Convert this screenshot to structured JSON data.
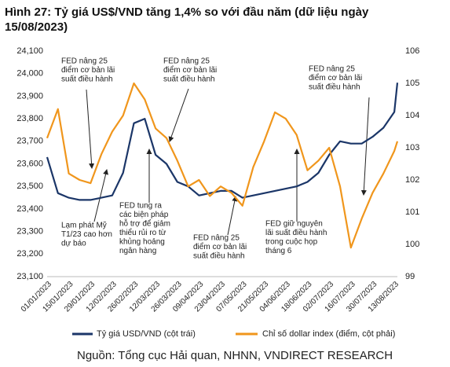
{
  "chart_data": {
    "type": "line",
    "title": [
      "Hình 27: Tỷ giá US$/VND tăng 1,4% so với đầu năm (dữ liệu ngày",
      "15/08/2023)"
    ],
    "x": [
      "01/01/2023",
      "08/01/2023",
      "15/01/2023",
      "22/01/2023",
      "29/01/2023",
      "05/02/2023",
      "12/02/2023",
      "19/02/2023",
      "26/02/2023",
      "05/03/2023",
      "12/03/2023",
      "19/03/2023",
      "26/03/2023",
      "02/04/2023",
      "09/04/2023",
      "16/04/2023",
      "23/04/2023",
      "30/04/2023",
      "07/05/2023",
      "14/05/2023",
      "21/05/2023",
      "28/05/2023",
      "04/06/2023",
      "11/06/2023",
      "18/06/2023",
      "25/06/2023",
      "02/07/2023",
      "09/07/2023",
      "16/07/2023",
      "23/07/2023",
      "30/07/2023",
      "06/08/2023",
      "13/08/2023",
      "15/08/2023"
    ],
    "xlim": [
      "01/01/2023",
      "15/08/2023"
    ],
    "xticks": [
      "01/01/2023",
      "15/01/2023",
      "29/01/2023",
      "12/02/2023",
      "26/02/2023",
      "12/03/2023",
      "26/03/2023",
      "09/04/2023",
      "23/04/2023",
      "07/05/2023",
      "21/05/2023",
      "04/06/2023",
      "18/06/2023",
      "02/07/2023",
      "16/07/2023",
      "30/07/2023",
      "13/08/2023"
    ],
    "ylim": [
      23100,
      24100
    ],
    "yticks": [
      {
        "value": 23100,
        "label": "23,100"
      },
      {
        "value": 23200,
        "label": "23,200"
      },
      {
        "value": 23300,
        "label": "23,300"
      },
      {
        "value": 23400,
        "label": "23,400"
      },
      {
        "value": 23500,
        "label": "23,500"
      },
      {
        "value": 23600,
        "label": "23,600"
      },
      {
        "value": 23700,
        "label": "23,700"
      },
      {
        "value": 23800,
        "label": "23,800"
      },
      {
        "value": 23900,
        "label": "23,900"
      },
      {
        "value": 24000,
        "label": "24,000"
      },
      {
        "value": 24100,
        "label": "24,100"
      }
    ],
    "y2lim": [
      99,
      106
    ],
    "y2ticks": [
      99,
      100,
      101,
      102,
      103,
      104,
      105,
      106
    ],
    "series": [
      {
        "name": "Tỷ giá USD/VND (cột trái)",
        "color": "#1b3668",
        "values": [
          23630,
          23470,
          23450,
          23440,
          23440,
          23450,
          23460,
          23560,
          23780,
          23800,
          23640,
          23600,
          23520,
          23500,
          23460,
          23470,
          23480,
          23480,
          23450,
          23460,
          23470,
          23480,
          23490,
          23500,
          23520,
          23560,
          23640,
          23700,
          23690,
          23690,
          23720,
          23760,
          23830,
          23960
        ]
      },
      {
        "name": "Chỉ số dollar index (điểm, cột phải)",
        "color": "#f0961c",
        "axis": "y2",
        "values": [
          103.3,
          104.2,
          102.2,
          102.0,
          101.9,
          102.8,
          103.5,
          104.0,
          105.0,
          104.5,
          103.6,
          103.3,
          102.6,
          101.8,
          102.0,
          101.5,
          101.8,
          101.6,
          101.2,
          102.4,
          103.2,
          104.1,
          103.9,
          103.4,
          102.3,
          102.6,
          103.0,
          101.8,
          99.9,
          100.8,
          101.6,
          102.2,
          102.9,
          103.2
        ]
      }
    ],
    "annotations": [
      [
        "FED nâng 25",
        "điểm cơ bản lãi",
        "suất điều hành"
      ],
      [
        "FED nâng 25",
        "điểm cơ bản lãi",
        "suất điều hành"
      ],
      [
        "FED nâng 25",
        "điểm cơ bản lãi",
        "suất điều hành"
      ],
      [
        "Lạm phát Mỹ",
        "T1/23 cao hơn",
        "dự báo"
      ],
      [
        "FED tung ra",
        "các biện pháp",
        "hỗ trợ để giảm",
        "thiểu rủi ro từ",
        "khủng hoảng",
        "ngân hàng"
      ],
      [
        "FED nâng 25",
        "điểm cơ bản lãi",
        "suất điều hành"
      ],
      [
        "FED giữ nguyên",
        "lãi suất điều hành",
        "trong cuộc họp",
        "tháng 6"
      ]
    ],
    "source": "Nguồn:  Tổng cục Hải quan, NHNN, VNDIRECT RESEARCH"
  }
}
